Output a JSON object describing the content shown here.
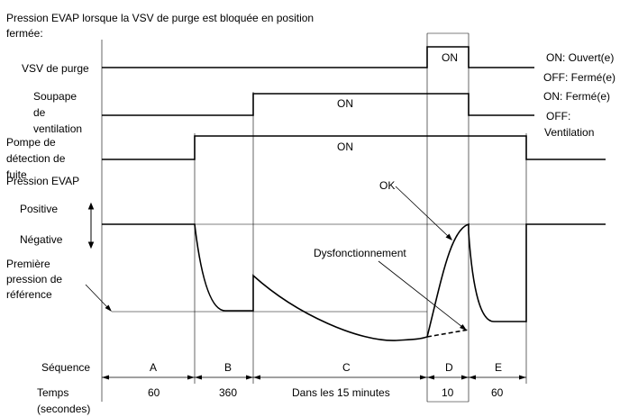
{
  "title_line1": "Pression EVAP lorsque la VSV de purge est bloquée en position",
  "title_line2": "fermée:",
  "signals": {
    "vsv": {
      "label": "VSV de purge",
      "on_text": "ON",
      "legend_on": "ON: Ouvert(e)",
      "legend_off": "OFF: Fermé(e)"
    },
    "soupape": {
      "label_lines": [
        "Soupape",
        "de",
        "ventilation"
      ],
      "on_text": "ON",
      "legend_on": "ON: Fermé(e)",
      "legend_off_lines": [
        "OFF:",
        "Ventilation"
      ]
    },
    "pompe": {
      "label_lines": [
        "Pompe de",
        "détection de",
        "fuite"
      ],
      "on_text": "ON"
    }
  },
  "pressure": {
    "label": "Pression EVAP",
    "positive": "Positive",
    "negative": "Négative",
    "reference_lines": [
      "Première",
      "pression de",
      "référence"
    ],
    "ok_label": "OK",
    "malfunction_label": "Dysfonctionnement"
  },
  "sequence": {
    "label": "Séquence",
    "time_label_lines": [
      "Temps",
      "(secondes)"
    ],
    "segments": [
      {
        "id": "A",
        "time": "60"
      },
      {
        "id": "B",
        "time": "360"
      },
      {
        "id": "C",
        "time": "Dans les 15 minutes"
      },
      {
        "id": "D",
        "time": "10"
      },
      {
        "id": "E",
        "time": "60"
      }
    ]
  }
}
